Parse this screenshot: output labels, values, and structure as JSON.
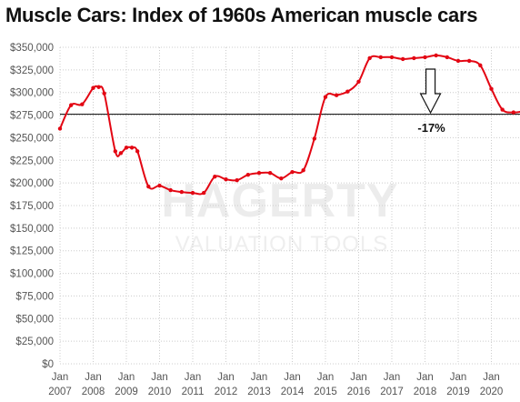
{
  "chart_data": {
    "type": "line",
    "title": "Muscle Cars: Index of 1960s American muscle cars",
    "xlabel": "",
    "ylabel": "",
    "ylim": [
      0,
      350000
    ],
    "y_ticks": [
      "$350,000",
      "$325,000",
      "$300,000",
      "$275,000",
      "$250,000",
      "$225,000",
      "$200,000",
      "$175,000",
      "$150,000",
      "$125,000",
      "$100,000",
      "$75,000",
      "$50,000",
      "$25,000",
      "$0"
    ],
    "x_ticks": [
      {
        "month": "Jan",
        "year": "2007"
      },
      {
        "month": "Jan",
        "year": "2008"
      },
      {
        "month": "Jan",
        "year": "2009"
      },
      {
        "month": "Jan",
        "year": "2010"
      },
      {
        "month": "Jan",
        "year": "2011"
      },
      {
        "month": "Jan",
        "year": "2012"
      },
      {
        "month": "Jan",
        "year": "2013"
      },
      {
        "month": "Jan",
        "year": "2014"
      },
      {
        "month": "Jan",
        "year": "2015"
      },
      {
        "month": "Jan",
        "year": "2016"
      },
      {
        "month": "Jan",
        "year": "2017"
      },
      {
        "month": "Jan",
        "year": "2018"
      },
      {
        "month": "Jan",
        "year": "2019"
      },
      {
        "month": "Jan",
        "year": "2020"
      }
    ],
    "grid": true,
    "series": [
      {
        "color": "#e30613",
        "points": [
          {
            "x": "2007-01",
            "y": 260000
          },
          {
            "x": "2007-05",
            "y": 286000
          },
          {
            "x": "2007-09",
            "y": 287000
          },
          {
            "x": "2008-01",
            "y": 305000
          },
          {
            "x": "2008-03",
            "y": 306000
          },
          {
            "x": "2008-05",
            "y": 299000
          },
          {
            "x": "2008-09",
            "y": 235000
          },
          {
            "x": "2008-11",
            "y": 233000
          },
          {
            "x": "2009-01",
            "y": 239000
          },
          {
            "x": "2009-03",
            "y": 239000
          },
          {
            "x": "2009-05",
            "y": 235000
          },
          {
            "x": "2009-09",
            "y": 196000
          },
          {
            "x": "2010-01",
            "y": 197000
          },
          {
            "x": "2010-05",
            "y": 192000
          },
          {
            "x": "2010-09",
            "y": 190000
          },
          {
            "x": "2011-01",
            "y": 189000
          },
          {
            "x": "2011-05",
            "y": 189000
          },
          {
            "x": "2011-09",
            "y": 207000
          },
          {
            "x": "2012-01",
            "y": 204000
          },
          {
            "x": "2012-05",
            "y": 203000
          },
          {
            "x": "2012-09",
            "y": 209000
          },
          {
            "x": "2013-01",
            "y": 211000
          },
          {
            "x": "2013-05",
            "y": 211000
          },
          {
            "x": "2013-09",
            "y": 205000
          },
          {
            "x": "2014-01",
            "y": 212000
          },
          {
            "x": "2014-05",
            "y": 214000
          },
          {
            "x": "2014-09",
            "y": 249000
          },
          {
            "x": "2015-01",
            "y": 295000
          },
          {
            "x": "2015-05",
            "y": 297000
          },
          {
            "x": "2015-09",
            "y": 301000
          },
          {
            "x": "2016-01",
            "y": 312000
          },
          {
            "x": "2016-05",
            "y": 338000
          },
          {
            "x": "2016-09",
            "y": 339000
          },
          {
            "x": "2017-01",
            "y": 339000
          },
          {
            "x": "2017-05",
            "y": 337000
          },
          {
            "x": "2017-09",
            "y": 338000
          },
          {
            "x": "2018-01",
            "y": 339000
          },
          {
            "x": "2018-05",
            "y": 341000
          },
          {
            "x": "2018-09",
            "y": 339000
          },
          {
            "x": "2019-01",
            "y": 335000
          },
          {
            "x": "2019-05",
            "y": 335000
          },
          {
            "x": "2019-09",
            "y": 330000
          },
          {
            "x": "2020-01",
            "y": 304000
          },
          {
            "x": "2020-05",
            "y": 281000
          },
          {
            "x": "2020-09",
            "y": 278000
          },
          {
            "x": "2020-12",
            "y": 279000
          }
        ]
      }
    ],
    "reference_line": {
      "y": 276000,
      "color": "#000000"
    },
    "annotations": [
      {
        "type": "arrow-down",
        "x": "2018-03",
        "text": "-17%"
      }
    ],
    "watermark": {
      "line1": "HAGERTY",
      "line2": "VALUATION TOOLS"
    }
  }
}
